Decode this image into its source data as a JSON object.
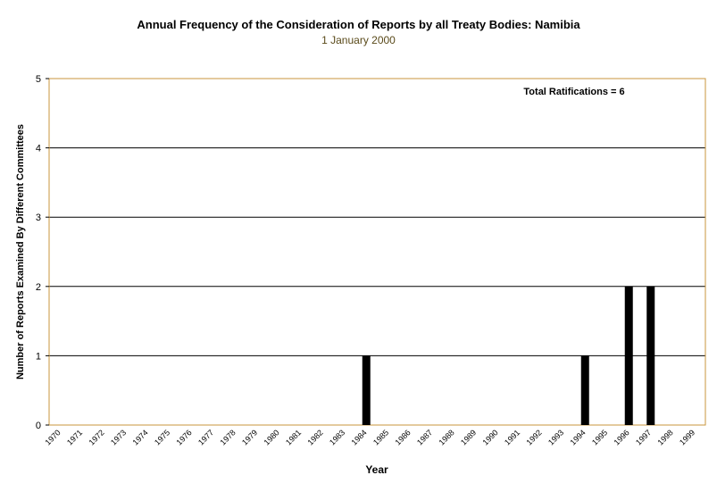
{
  "title": "Annual Frequency of the Consideration of Reports by all Treaty Bodies: Namibia",
  "subtitle": "1 January 2000",
  "annotation": "Total Ratifications = 6",
  "colors": {
    "frame": "#c8963c",
    "bar": "#000000",
    "text": "#000000"
  },
  "chart_data": {
    "type": "bar",
    "title": "Annual Frequency of the Consideration of Reports by all Treaty Bodies: Namibia",
    "subtitle": "1 January 2000",
    "xlabel": "Year",
    "ylabel": "Number of Reports Examined By Different Committees",
    "ylim": [
      0,
      5
    ],
    "yticks": [
      0,
      1,
      2,
      3,
      4,
      5
    ],
    "grid": true,
    "categories": [
      "1970",
      "1971",
      "1972",
      "1973",
      "1974",
      "1975",
      "1976",
      "1977",
      "1978",
      "1979",
      "1980",
      "1981",
      "1982",
      "1983",
      "1984",
      "1985",
      "1986",
      "1987",
      "1988",
      "1989",
      "1990",
      "1991",
      "1992",
      "1993",
      "1994",
      "1995",
      "1996",
      "1997",
      "1998",
      "1999"
    ],
    "values": [
      0,
      0,
      0,
      0,
      0,
      0,
      0,
      0,
      0,
      0,
      0,
      0,
      0,
      0,
      1,
      0,
      0,
      0,
      0,
      0,
      0,
      0,
      0,
      0,
      1,
      0,
      2,
      2,
      0,
      0
    ],
    "annotation": "Total Ratifications = 6"
  }
}
